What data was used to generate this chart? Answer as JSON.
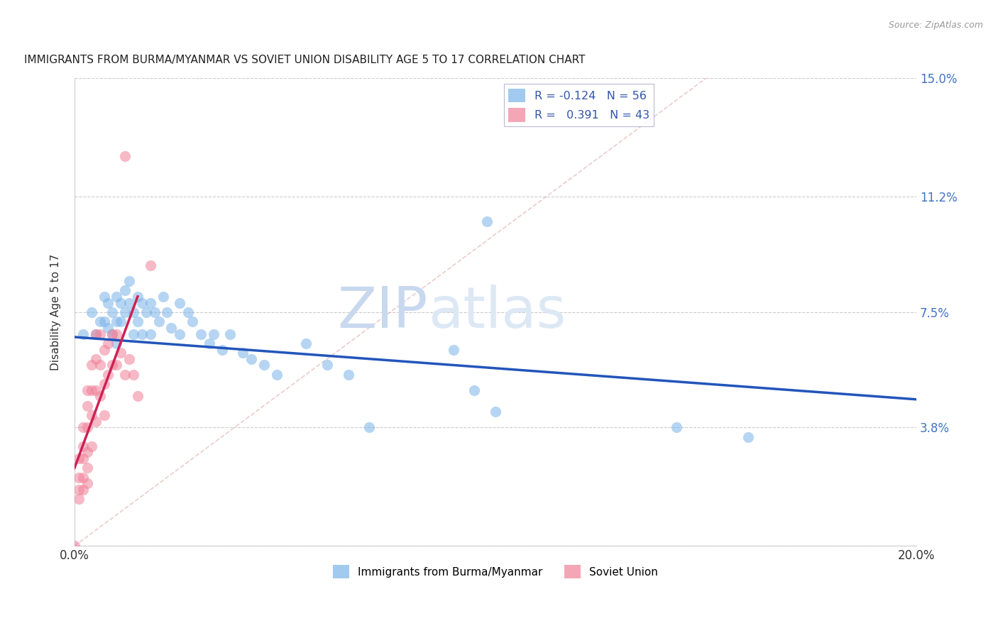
{
  "title": "IMMIGRANTS FROM BURMA/MYANMAR VS SOVIET UNION DISABILITY AGE 5 TO 17 CORRELATION CHART",
  "source": "Source: ZipAtlas.com",
  "ylabel": "Disability Age 5 to 17",
  "xlim": [
    0,
    0.2
  ],
  "ylim": [
    0,
    0.15
  ],
  "ytick_positions": [
    0.0,
    0.038,
    0.075,
    0.112,
    0.15
  ],
  "ytick_labels": [
    "",
    "3.8%",
    "7.5%",
    "11.2%",
    "15.0%"
  ],
  "legend_r_values": [
    "-0.124",
    " 0.391"
  ],
  "legend_n_values": [
    "56",
    "43"
  ],
  "burma_color": "#7ab4e8",
  "soviet_color": "#f08098",
  "burma_trendline_color": "#2255bb",
  "soviet_trendline_color": "#cc2255",
  "ref_line_color": "#cccccc",
  "watermark_text": "ZIPatlas",
  "watermark_color": "#dde8f5",
  "burma_scatter": [
    [
      0.002,
      0.068
    ],
    [
      0.004,
      0.075
    ],
    [
      0.005,
      0.068
    ],
    [
      0.006,
      0.072
    ],
    [
      0.007,
      0.08
    ],
    [
      0.007,
      0.072
    ],
    [
      0.008,
      0.078
    ],
    [
      0.008,
      0.07
    ],
    [
      0.009,
      0.075
    ],
    [
      0.009,
      0.068
    ],
    [
      0.01,
      0.08
    ],
    [
      0.01,
      0.072
    ],
    [
      0.01,
      0.065
    ],
    [
      0.011,
      0.078
    ],
    [
      0.011,
      0.072
    ],
    [
      0.012,
      0.082
    ],
    [
      0.012,
      0.075
    ],
    [
      0.013,
      0.085
    ],
    [
      0.013,
      0.078
    ],
    [
      0.014,
      0.075
    ],
    [
      0.014,
      0.068
    ],
    [
      0.015,
      0.08
    ],
    [
      0.015,
      0.072
    ],
    [
      0.016,
      0.078
    ],
    [
      0.016,
      0.068
    ],
    [
      0.017,
      0.075
    ],
    [
      0.018,
      0.078
    ],
    [
      0.018,
      0.068
    ],
    [
      0.019,
      0.075
    ],
    [
      0.02,
      0.072
    ],
    [
      0.021,
      0.08
    ],
    [
      0.022,
      0.075
    ],
    [
      0.023,
      0.07
    ],
    [
      0.025,
      0.078
    ],
    [
      0.025,
      0.068
    ],
    [
      0.027,
      0.075
    ],
    [
      0.028,
      0.072
    ],
    [
      0.03,
      0.068
    ],
    [
      0.032,
      0.065
    ],
    [
      0.033,
      0.068
    ],
    [
      0.035,
      0.063
    ],
    [
      0.037,
      0.068
    ],
    [
      0.04,
      0.062
    ],
    [
      0.042,
      0.06
    ],
    [
      0.045,
      0.058
    ],
    [
      0.048,
      0.055
    ],
    [
      0.055,
      0.065
    ],
    [
      0.06,
      0.058
    ],
    [
      0.065,
      0.055
    ],
    [
      0.07,
      0.038
    ],
    [
      0.09,
      0.063
    ],
    [
      0.095,
      0.05
    ],
    [
      0.098,
      0.104
    ],
    [
      0.1,
      0.043
    ],
    [
      0.143,
      0.038
    ],
    [
      0.16,
      0.035
    ]
  ],
  "soviet_scatter": [
    [
      0.0,
      0.0
    ],
    [
      0.001,
      0.028
    ],
    [
      0.001,
      0.022
    ],
    [
      0.001,
      0.018
    ],
    [
      0.001,
      0.015
    ],
    [
      0.002,
      0.038
    ],
    [
      0.002,
      0.032
    ],
    [
      0.002,
      0.028
    ],
    [
      0.002,
      0.022
    ],
    [
      0.002,
      0.018
    ],
    [
      0.003,
      0.05
    ],
    [
      0.003,
      0.045
    ],
    [
      0.003,
      0.038
    ],
    [
      0.003,
      0.03
    ],
    [
      0.003,
      0.025
    ],
    [
      0.003,
      0.02
    ],
    [
      0.004,
      0.058
    ],
    [
      0.004,
      0.05
    ],
    [
      0.004,
      0.042
    ],
    [
      0.004,
      0.032
    ],
    [
      0.005,
      0.068
    ],
    [
      0.005,
      0.06
    ],
    [
      0.005,
      0.05
    ],
    [
      0.005,
      0.04
    ],
    [
      0.006,
      0.068
    ],
    [
      0.006,
      0.058
    ],
    [
      0.006,
      0.048
    ],
    [
      0.007,
      0.063
    ],
    [
      0.007,
      0.052
    ],
    [
      0.007,
      0.042
    ],
    [
      0.008,
      0.065
    ],
    [
      0.008,
      0.055
    ],
    [
      0.009,
      0.068
    ],
    [
      0.009,
      0.058
    ],
    [
      0.01,
      0.068
    ],
    [
      0.01,
      0.058
    ],
    [
      0.011,
      0.062
    ],
    [
      0.012,
      0.055
    ],
    [
      0.012,
      0.125
    ],
    [
      0.013,
      0.06
    ],
    [
      0.014,
      0.055
    ],
    [
      0.015,
      0.048
    ],
    [
      0.018,
      0.09
    ]
  ],
  "burma_trend_x": [
    0.0,
    0.2
  ],
  "burma_trend_y": [
    0.067,
    0.047
  ],
  "soviet_trend_x": [
    0.0,
    0.015
  ],
  "soviet_trend_y": [
    0.025,
    0.08
  ],
  "ref_line_x": [
    0.0,
    0.15
  ],
  "ref_line_y": [
    0.0,
    0.15
  ]
}
